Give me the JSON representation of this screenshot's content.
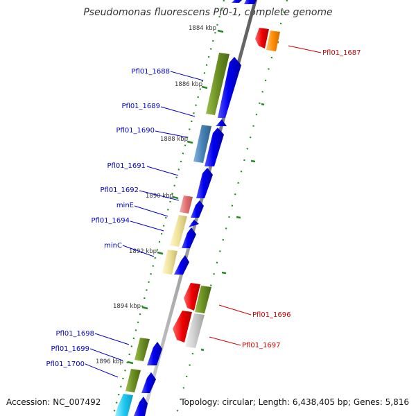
{
  "title": "Pseudomonas fluorescens Pf0-1, complete genome",
  "accession_label": "Accession: NC_007492",
  "summary_label": "Topology: circular; Length: 6,438,405 bp; Genes: 5,816",
  "colors": {
    "backbone": "#8c8c8c",
    "tick": "#228b22",
    "forward_gene": "#0000ee",
    "label_left": "#0000cc",
    "label_right": "#cc0000"
  },
  "scale_labels": [
    "1884 kbp",
    "1886 kbp",
    "1888 kbp",
    "1890 kbp",
    "1892 kbp",
    "1894 kbp",
    "1896 kbp"
  ],
  "gene_labels_left": [
    "Pfl01_1688",
    "Pfl01_1689",
    "Pfl01_1690",
    "Pfl01_1691",
    "Pfl01_1692",
    "minE",
    "Pfl01_1694",
    "minC",
    "Pfl01_1698",
    "Pfl01_1699",
    "Pfl01_1700"
  ],
  "gene_labels_right": [
    "Pfl01_1687",
    "Pfl01_1696",
    "Pfl01_1697"
  ]
}
